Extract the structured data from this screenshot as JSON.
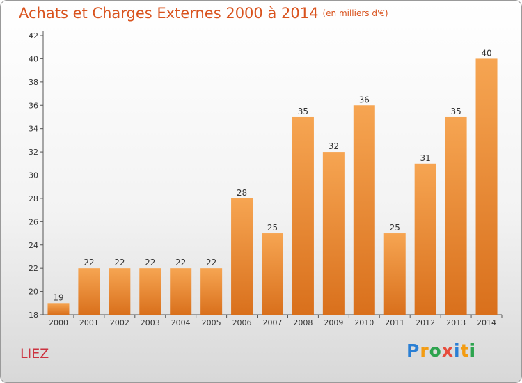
{
  "title": "Achats et Charges Externes 2000 à 2014",
  "unit_note": "(en milliers d'€)",
  "location": "LIEZ",
  "logo": {
    "letters": [
      "P",
      "r",
      "o",
      "x",
      "i",
      "t",
      "i"
    ],
    "colors": [
      "#2a7fd4",
      "#f39c12",
      "#2ea44f",
      "#e74c3c",
      "#2a7fd4",
      "#f39c12",
      "#2ea44f"
    ]
  },
  "colors": {
    "bar": "#f0902f",
    "title": "#d9531e",
    "location": "#cc3340"
  },
  "chart_data": {
    "type": "bar",
    "title": "Achats et Charges Externes 2000 à 2014",
    "categories": [
      "2000",
      "2001",
      "2002",
      "2003",
      "2004",
      "2005",
      "2006",
      "2007",
      "2008",
      "2009",
      "2010",
      "2011",
      "2012",
      "2013",
      "2014"
    ],
    "values": [
      19,
      22,
      22,
      22,
      22,
      22,
      28,
      25,
      35,
      32,
      36,
      25,
      31,
      35,
      40
    ],
    "ylim": [
      18,
      42
    ],
    "yticks": [
      18,
      20,
      22,
      24,
      26,
      28,
      30,
      32,
      34,
      36,
      38,
      40,
      42
    ],
    "grid": false,
    "data_labels": true
  }
}
